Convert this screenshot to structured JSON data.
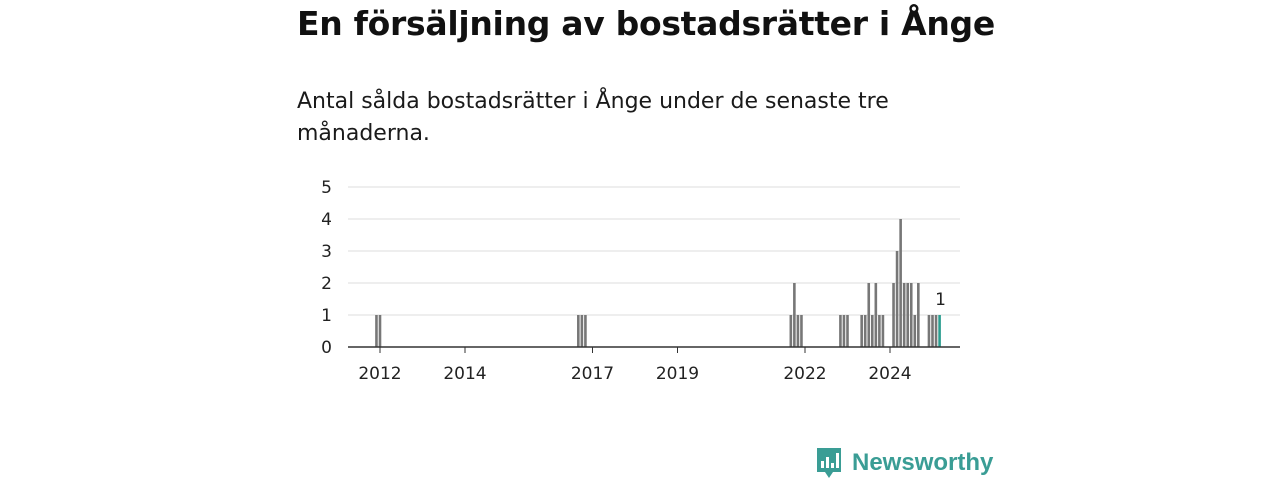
{
  "title": "En försäljning av bostadsrätter i Ånge",
  "subtitle": "Antal sålda bostadsrätter i Ånge under de senaste tre månaderna.",
  "brand": {
    "name": "Newsworthy"
  },
  "colors": {
    "bar": "#777777",
    "highlight": "#2a9d8f",
    "grid": "#dddddd",
    "axis": "#333333",
    "brand": "#3a9d95"
  },
  "chart_data": {
    "type": "bar",
    "ylim": [
      0,
      5
    ],
    "yticks": [
      0,
      1,
      2,
      3,
      4,
      5
    ],
    "xticks": [
      "2012",
      "2014",
      "2017",
      "2019",
      "2022",
      "2024"
    ],
    "grid": true,
    "data_label": {
      "text": "1",
      "month": "2025-03"
    },
    "highlight_month": "2025-03",
    "months": [
      "2011-12",
      "2012-01",
      "2016-09",
      "2016-10",
      "2016-11",
      "2021-09",
      "2021-10",
      "2021-11",
      "2021-12",
      "2022-11",
      "2022-12",
      "2023-01",
      "2023-05",
      "2023-06",
      "2023-07",
      "2023-08",
      "2023-09",
      "2023-10",
      "2023-11",
      "2024-02",
      "2024-03",
      "2024-04",
      "2024-05",
      "2024-06",
      "2024-07",
      "2024-08",
      "2024-09",
      "2024-12",
      "2025-01",
      "2025-02",
      "2025-03"
    ],
    "values": [
      1,
      1,
      1,
      1,
      1,
      1,
      2,
      1,
      1,
      1,
      1,
      1,
      1,
      1,
      2,
      1,
      2,
      1,
      1,
      2,
      3,
      4,
      2,
      2,
      2,
      1,
      2,
      1,
      1,
      1,
      1
    ]
  }
}
